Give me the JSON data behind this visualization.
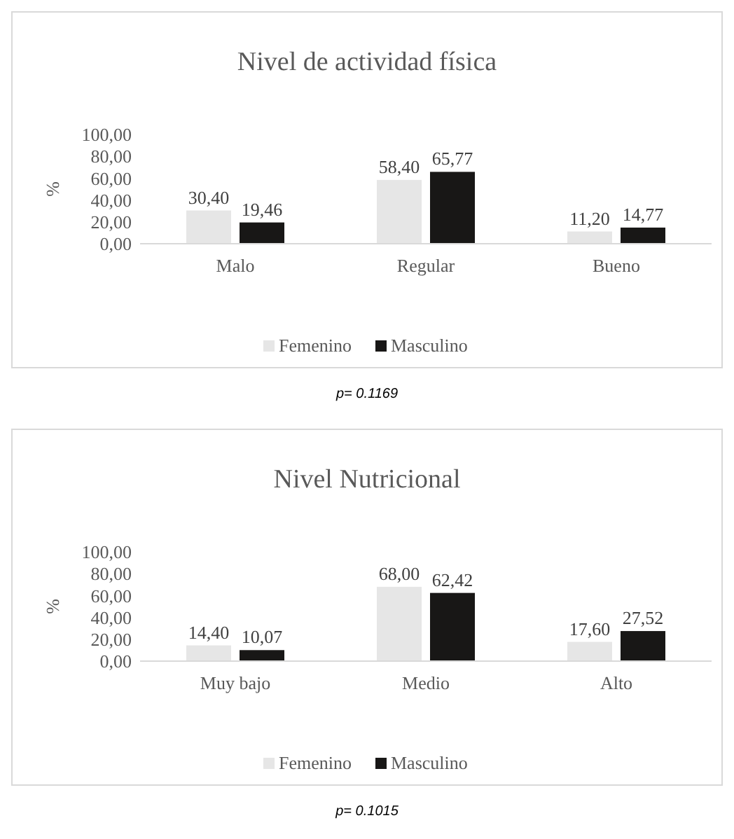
{
  "chart_data": [
    {
      "type": "bar",
      "title": "Nivel de actividad física",
      "ylabel": "%",
      "categories": [
        "Malo",
        "Regular",
        "Bueno"
      ],
      "series": [
        {
          "name": "Femenino",
          "color": "#e6e6e6",
          "values": [
            30.4,
            58.4,
            11.2
          ],
          "value_labels": [
            "30,40",
            "58,40",
            "11,20"
          ]
        },
        {
          "name": "Masculino",
          "color": "#181716",
          "values": [
            19.46,
            65.77,
            14.77
          ],
          "value_labels": [
            "19,46",
            "65,77",
            "14,77"
          ]
        }
      ],
      "ylim": [
        0,
        100
      ],
      "yticks": [
        {
          "value": 0,
          "label": "0,00"
        },
        {
          "value": 20,
          "label": "20,00"
        },
        {
          "value": 40,
          "label": "40,00"
        },
        {
          "value": 60,
          "label": "60,00"
        },
        {
          "value": 80,
          "label": "80,00"
        },
        {
          "value": 100,
          "label": "100,00"
        }
      ],
      "grid": false,
      "legend": "bottom",
      "annotations": [
        "p= 0.1169"
      ]
    },
    {
      "type": "bar",
      "title": "Nivel Nutricional",
      "ylabel": "%",
      "categories": [
        "Muy bajo",
        "Medio",
        "Alto"
      ],
      "series": [
        {
          "name": "Femenino",
          "color": "#e6e6e6",
          "values": [
            14.4,
            68.0,
            17.6
          ],
          "value_labels": [
            "14,40",
            "68,00",
            "17,60"
          ]
        },
        {
          "name": "Masculino",
          "color": "#181716",
          "values": [
            10.07,
            62.42,
            27.52
          ],
          "value_labels": [
            "10,07",
            "62,42",
            "27,52"
          ]
        }
      ],
      "ylim": [
        0,
        100
      ],
      "yticks": [
        {
          "value": 0,
          "label": "0,00"
        },
        {
          "value": 20,
          "label": "20,00"
        },
        {
          "value": 40,
          "label": "40,00"
        },
        {
          "value": 60,
          "label": "60,00"
        },
        {
          "value": 80,
          "label": "80,00"
        },
        {
          "value": 100,
          "label": "100,00"
        }
      ],
      "grid": false,
      "legend": "bottom",
      "annotations": [
        "p= 0.1015"
      ]
    }
  ]
}
